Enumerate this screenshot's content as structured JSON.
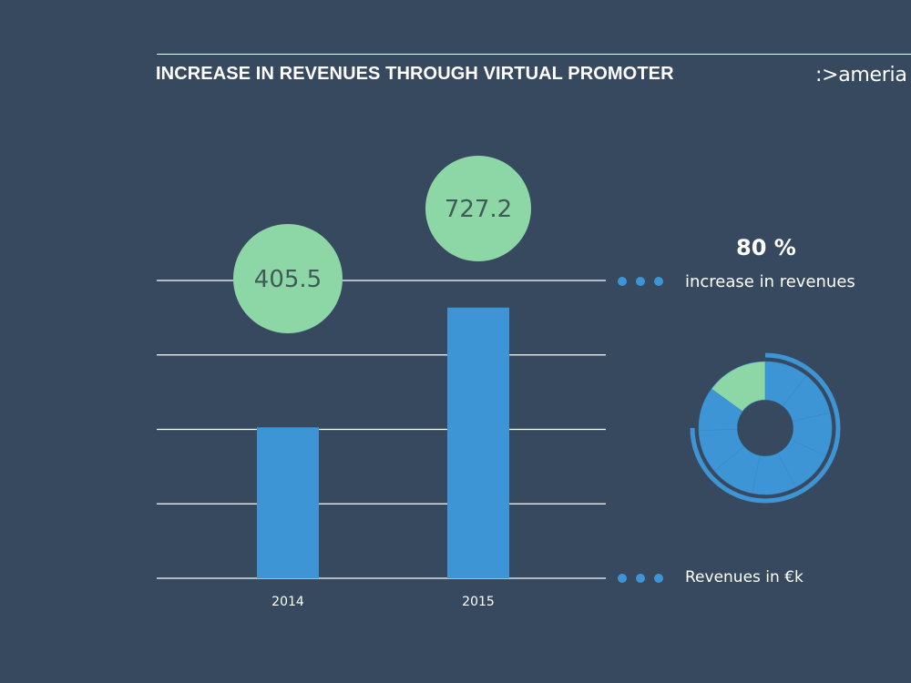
{
  "title": "INCREASE IN REVENUES THROUGH VIRTUAL PROMOTER",
  "logo": ":>ameria",
  "colors": {
    "background": "#37495f",
    "bar": "#3e95d6",
    "bubble": "#8dd7a6",
    "grid": "#ffffff",
    "text": "#ffffff"
  },
  "chart_data": {
    "type": "bar",
    "categories": [
      "2014",
      "2015"
    ],
    "values": [
      405.5,
      727.2
    ],
    "value_labels": [
      "405.5",
      "727.2"
    ],
    "title": "INCREASE IN REVENUES THROUGH VIRTUAL PROMOTER",
    "ylabel": "Revenues in €k",
    "ylim": [
      0,
      800
    ],
    "gridlines": 5
  },
  "legend": {
    "increase_percent": "80 %",
    "increase_label": "increase in revenues",
    "revenues_label": "Revenues in €k"
  },
  "donut": {
    "highlight_fraction": 0.15,
    "outer_ring_fraction": 0.75,
    "segments": 8
  }
}
